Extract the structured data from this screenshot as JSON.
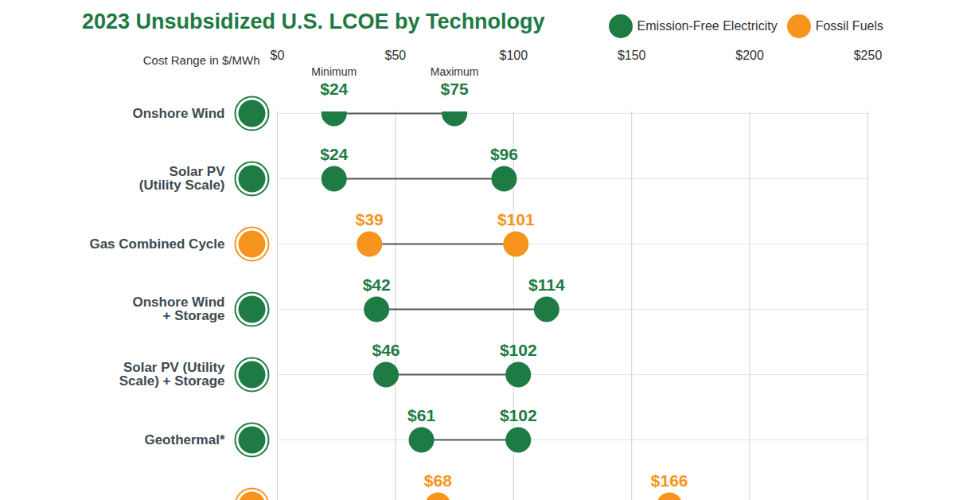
{
  "chart_data": {
    "type": "dumbbell",
    "title": "2023 Unsubsidized U.S. LCOE by Technology",
    "x_label": "Cost Range in $/MWh",
    "orientation": "horizontal",
    "categories": [
      "Onshore Wind",
      "Solar PV\n(Utility Scale)",
      "Gas Combined Cycle",
      "Onshore Wind\n+ Storage",
      "Solar PV (Utility\nScale) + Storage",
      "Geothermal*",
      null
    ],
    "category_group": [
      "Emission-Free Electricity",
      "Emission-Free Electricity",
      "Fossil Fuels",
      "Emission-Free Electricity",
      "Emission-Free Electricity",
      "Emission-Free Electricity",
      "Fossil Fuels"
    ],
    "groups": [
      {
        "name": "Emission-Free Electricity",
        "color": "#1e7b44"
      },
      {
        "name": "Fossil Fuels",
        "color": "#f7941d"
      }
    ],
    "series": [
      {
        "name": "Minimum",
        "values": [
          24,
          24,
          39,
          42,
          46,
          61,
          68
        ],
        "value_labels": [
          "$24",
          "$24",
          "$39",
          "$42",
          "$46",
          "$61",
          "$68"
        ]
      },
      {
        "name": "Maximum",
        "values": [
          75,
          96,
          101,
          114,
          102,
          102,
          166
        ],
        "value_labels": [
          "$75",
          "$96",
          "$101",
          "$114",
          "$102",
          "$102",
          "$166"
        ]
      }
    ],
    "xlim": [
      0,
      250
    ],
    "xticks": [
      {
        "value": 0,
        "label": "$0"
      },
      {
        "value": 50,
        "label": "$50"
      },
      {
        "value": 100,
        "label": "$100"
      },
      {
        "value": 150,
        "label": "$150"
      },
      {
        "value": 200,
        "label": "$200"
      },
      {
        "value": 250,
        "label": "$250"
      }
    ],
    "grid": true,
    "data_labels": true,
    "legend": "top-right"
  }
}
